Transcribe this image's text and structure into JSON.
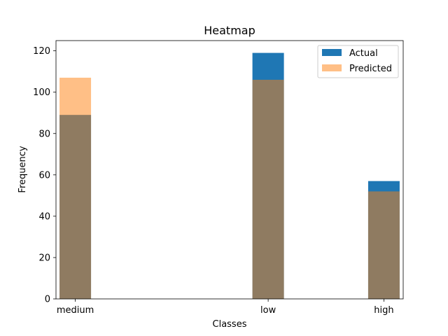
{
  "chart_data": {
    "type": "bar",
    "title": "Heatmap",
    "xlabel": "Classes",
    "ylabel": "Frequency",
    "categories": [
      "medium",
      "low",
      "high"
    ],
    "x_positions": [
      0,
      1.25,
      2
    ],
    "xlim": [
      -0.125,
      2.125
    ],
    "ylim": [
      0,
      124.95
    ],
    "yticks": [
      0,
      20,
      40,
      60,
      80,
      100,
      120
    ],
    "series": [
      {
        "name": "Actual",
        "values": [
          89,
          119,
          57
        ],
        "color": "#1f77b4",
        "alpha": 1
      },
      {
        "name": "Predicted",
        "values": [
          107,
          106,
          52
        ],
        "color": "#ff7f0e",
        "alpha": 0.5
      }
    ],
    "legend_position": "top-right",
    "grid": false
  }
}
